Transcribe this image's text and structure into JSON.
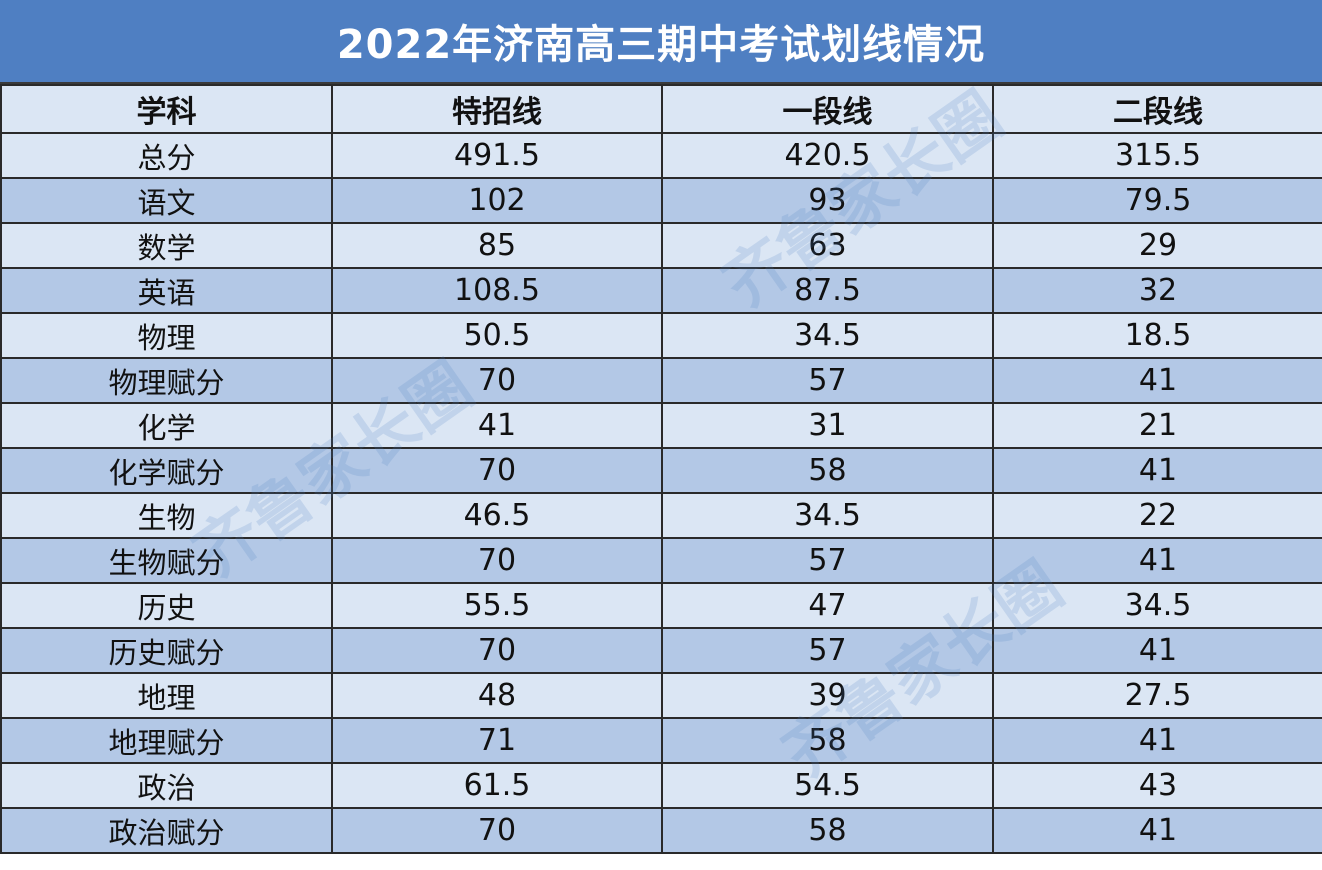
{
  "title": "2022年济南高三期中考试划线情况",
  "table": {
    "headers": [
      "学科",
      "特招线",
      "一段线",
      "二段线"
    ],
    "rows": [
      {
        "subject": "总分",
        "special": "491.5",
        "tier1": "420.5",
        "tier2": "315.5"
      },
      {
        "subject": "语文",
        "special": "102",
        "tier1": "93",
        "tier2": "79.5"
      },
      {
        "subject": "数学",
        "special": "85",
        "tier1": "63",
        "tier2": "29"
      },
      {
        "subject": "英语",
        "special": "108.5",
        "tier1": "87.5",
        "tier2": "32"
      },
      {
        "subject": "物理",
        "special": "50.5",
        "tier1": "34.5",
        "tier2": "18.5"
      },
      {
        "subject": "物理赋分",
        "special": "70",
        "tier1": "57",
        "tier2": "41"
      },
      {
        "subject": "化学",
        "special": "41",
        "tier1": "31",
        "tier2": "21"
      },
      {
        "subject": "化学赋分",
        "special": "70",
        "tier1": "58",
        "tier2": "41"
      },
      {
        "subject": "生物",
        "special": "46.5",
        "tier1": "34.5",
        "tier2": "22"
      },
      {
        "subject": "生物赋分",
        "special": "70",
        "tier1": "57",
        "tier2": "41"
      },
      {
        "subject": "历史",
        "special": "55.5",
        "tier1": "47",
        "tier2": "34.5"
      },
      {
        "subject": "历史赋分",
        "special": "70",
        "tier1": "57",
        "tier2": "41"
      },
      {
        "subject": "地理",
        "special": "48",
        "tier1": "39",
        "tier2": "27.5"
      },
      {
        "subject": "地理赋分",
        "special": "71",
        "tier1": "58",
        "tier2": "41"
      },
      {
        "subject": "政治",
        "special": "61.5",
        "tier1": "54.5",
        "tier2": "43"
      },
      {
        "subject": "政治赋分",
        "special": "70",
        "tier1": "58",
        "tier2": "41"
      }
    ]
  },
  "watermark": {
    "text": "齐鲁家长圈"
  },
  "colors": {
    "title_bg": "#4f7fc2",
    "row_light": "#dbe6f4",
    "row_dark": "#b3c8e6",
    "border": "#2a2a2a"
  }
}
